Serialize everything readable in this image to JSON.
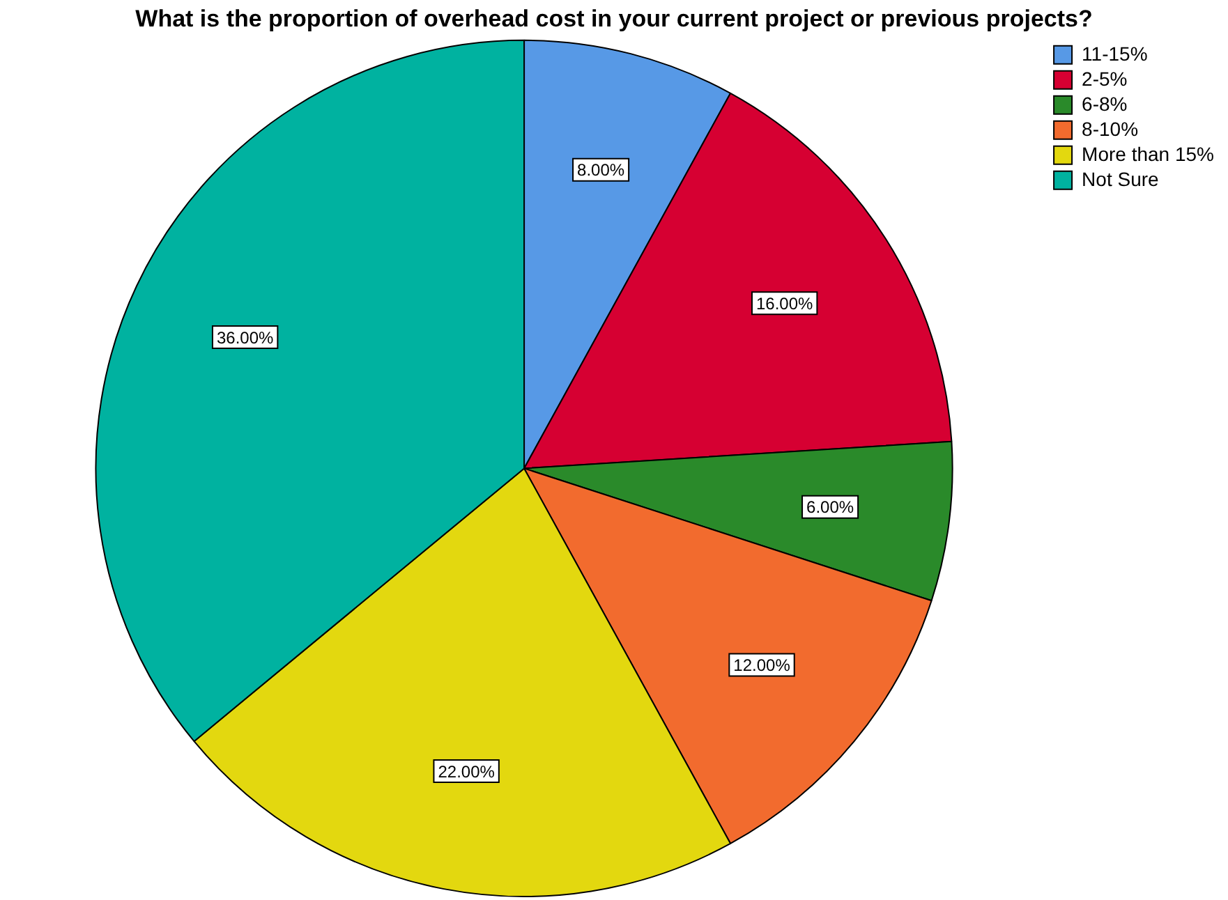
{
  "chart_data": {
    "type": "pie",
    "title": "What is the proportion of overhead cost in your current project or previous projects?",
    "categories": [
      "11-15%",
      "2-5%",
      "6-8%",
      "8-10%",
      "More than 15%",
      "Not Sure"
    ],
    "values": [
      8,
      16,
      6,
      12,
      22,
      36
    ],
    "colors": [
      "#5799e6",
      "#d60032",
      "#2a8a2a",
      "#f26b2e",
      "#e3d80f",
      "#00b2a0"
    ],
    "value_labels": [
      "8.00%",
      "16.00%",
      "6.00%",
      "12.00%",
      "22.00%",
      "36.00%"
    ],
    "legend": "top right"
  }
}
